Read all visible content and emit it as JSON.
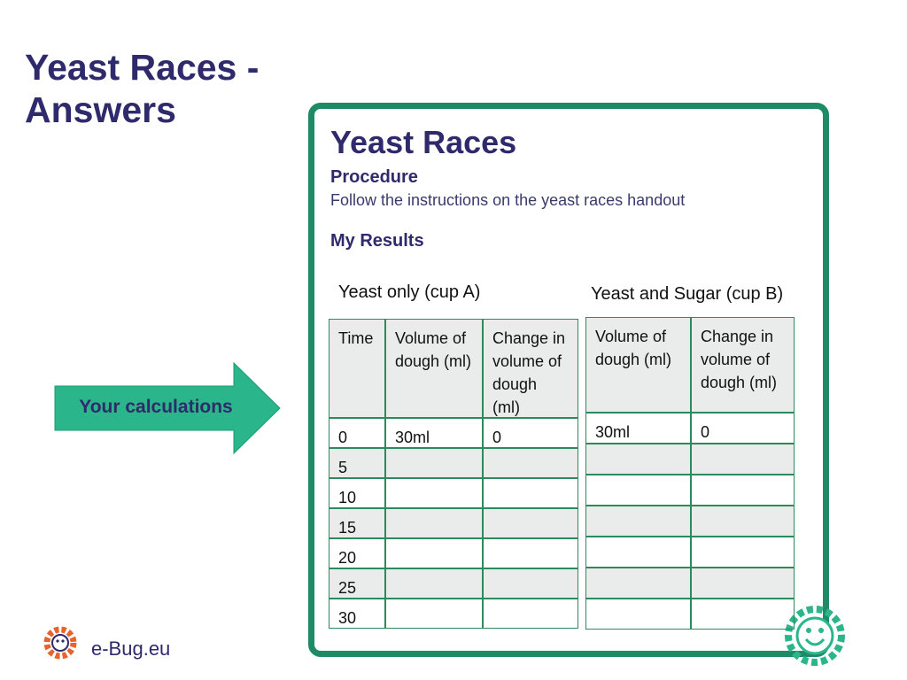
{
  "title": "Yeast Races - Answers",
  "arrow_label": "Your calculations",
  "card": {
    "title": "Yeast Races",
    "procedure_heading": "Procedure",
    "procedure_text": "Follow the instructions on the yeast races handout",
    "results_heading": "My Results"
  },
  "table_a": {
    "caption": "Yeast only (cup A)",
    "header": [
      "Time",
      "Volume of dough (ml)",
      "Change in volume of dough (ml)"
    ],
    "rows": [
      [
        "0",
        "30ml",
        "0"
      ],
      [
        "5"
      ],
      [
        "10"
      ],
      [
        "15"
      ],
      [
        "20"
      ],
      [
        "25"
      ],
      [
        "30"
      ]
    ]
  },
  "table_b": {
    "caption": "Yeast and Sugar (cup B)",
    "header": [
      "Volume of dough (ml)",
      "Change in volume of dough (ml)"
    ],
    "rows": [
      [
        "30ml",
        "0"
      ]
    ]
  },
  "logo": "e-Bug.eu"
}
